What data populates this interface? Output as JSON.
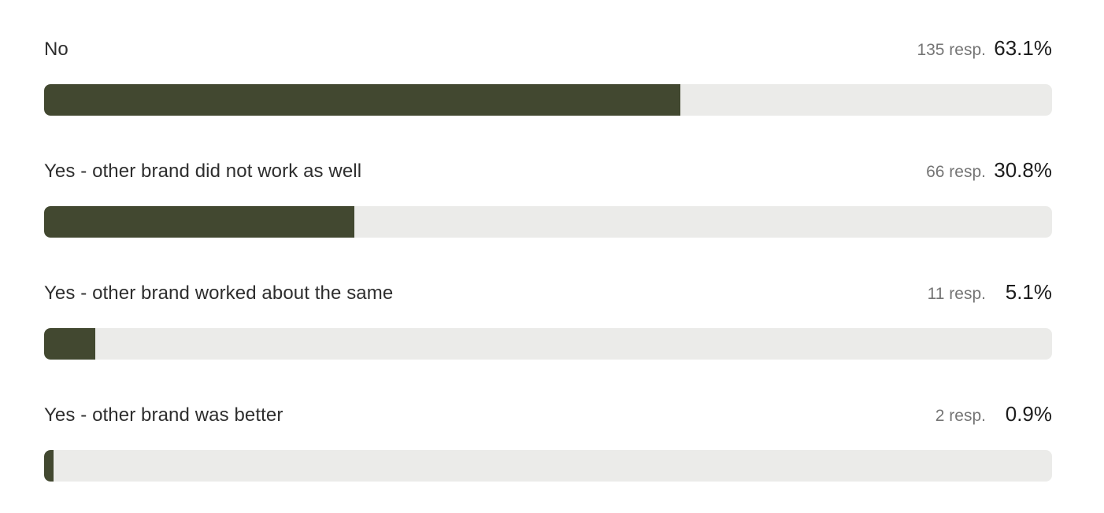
{
  "chart_data": {
    "type": "bar",
    "orientation": "horizontal",
    "title": "",
    "xlabel": "",
    "ylabel": "",
    "xlim": [
      0,
      100
    ],
    "unit": "%",
    "grid": false,
    "legend": false,
    "categories": [
      "No",
      "Yes - other brand did not work as well",
      "Yes - other brand worked about the same",
      "Yes - other brand was better"
    ],
    "values": [
      63.1,
      30.8,
      5.1,
      0.9
    ],
    "response_counts": [
      135,
      66,
      11,
      2
    ],
    "rows": [
      {
        "label": "No",
        "responses": 135,
        "responses_text": "135 resp.",
        "percent": 63.1,
        "percent_text": "63.1%"
      },
      {
        "label": "Yes - other brand did not work as well",
        "responses": 66,
        "responses_text": "66 resp.",
        "percent": 30.8,
        "percent_text": "30.8%"
      },
      {
        "label": "Yes - other brand worked about the same",
        "responses": 11,
        "responses_text": "11 resp.",
        "percent": 5.1,
        "percent_text": "5.1%"
      },
      {
        "label": "Yes - other brand was better",
        "responses": 2,
        "responses_text": "2 resp.",
        "percent": 0.9,
        "percent_text": "0.9%"
      }
    ],
    "colors": {
      "bar_fill": "#424830",
      "bar_track": "#ebebe9",
      "label_text": "#2e2e2e",
      "responses_text": "#757575",
      "percent_text": "#1c1c1c"
    }
  }
}
